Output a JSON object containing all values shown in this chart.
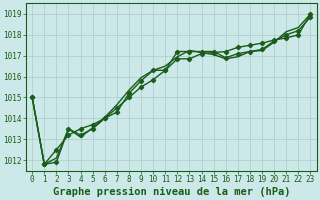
{
  "title": "Graphe pression niveau de la mer (hPa)",
  "x_values": [
    0,
    1,
    2,
    3,
    4,
    5,
    6,
    7,
    8,
    9,
    10,
    11,
    12,
    13,
    14,
    15,
    16,
    17,
    18,
    19,
    20,
    21,
    22,
    23
  ],
  "line1": [
    1015.0,
    1011.8,
    1011.9,
    1013.5,
    1013.2,
    1013.5,
    1014.0,
    1014.3,
    1015.2,
    1015.8,
    1016.3,
    1016.3,
    1017.2,
    1017.2,
    1017.2,
    1017.2,
    1016.9,
    1017.1,
    1017.2,
    1017.3,
    1017.7,
    1018.0,
    1018.2,
    1018.85
  ],
  "line2": [
    1015.0,
    1011.8,
    1012.5,
    1013.2,
    1013.5,
    1013.7,
    1014.0,
    1014.5,
    1015.0,
    1015.5,
    1015.85,
    1016.3,
    1016.85,
    1016.85,
    1017.1,
    1017.15,
    1017.2,
    1017.4,
    1017.5,
    1017.6,
    1017.75,
    1017.85,
    1018.0,
    1019.0
  ],
  "line3": [
    1015.0,
    1011.8,
    1012.1,
    1013.5,
    1013.1,
    1013.55,
    1014.05,
    1014.65,
    1015.35,
    1015.95,
    1016.3,
    1016.5,
    1016.95,
    1017.25,
    1017.15,
    1017.05,
    1016.85,
    1016.95,
    1017.2,
    1017.25,
    1017.65,
    1018.15,
    1018.35,
    1019.0
  ],
  "ylim": [
    1011.5,
    1019.5
  ],
  "xlim": [
    -0.5,
    23.5
  ],
  "yticks": [
    1012,
    1013,
    1014,
    1015,
    1016,
    1017,
    1018,
    1019
  ],
  "bg_color": "#cce8e8",
  "line_color": "#1a5c1a",
  "grid_color": "#aacaca",
  "marker": "D",
  "marker_size": 2.2,
  "line_width": 1.0,
  "title_fontsize": 7.5,
  "tick_fontsize": 5.5,
  "fig_width": 3.2,
  "fig_height": 2.0,
  "dpi": 100
}
